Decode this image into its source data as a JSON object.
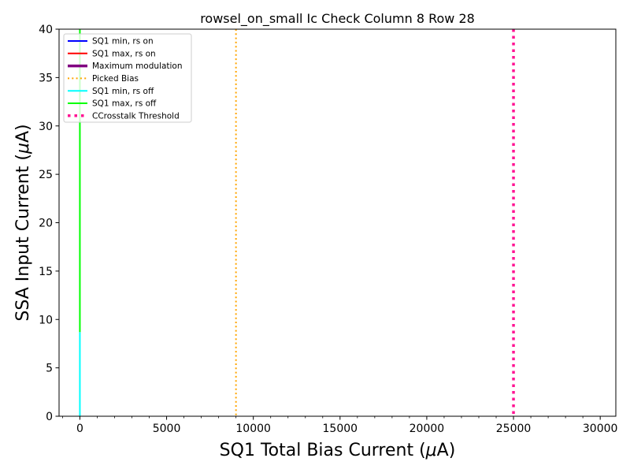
{
  "chart_data": {
    "type": "line",
    "title": "rowsel_on_small Ic Check Column 8 Row 28",
    "xlabel": "SQ1 Total Bias Current ($\\mu$A)",
    "ylabel": "SSA Input Current ($\\mu$A)",
    "xlabel_parts": [
      "SQ1 Total Bias Current (",
      "μ",
      "A)"
    ],
    "ylabel_parts": [
      "SSA Input Current (",
      "μ",
      "A)"
    ],
    "xlim": [
      -1200,
      30900
    ],
    "ylim": [
      0,
      40
    ],
    "x_ticks": [
      0,
      5000,
      10000,
      15000,
      20000,
      25000,
      30000
    ],
    "x_tick_labels": [
      "0",
      "5000",
      "10000",
      "15000",
      "20000",
      "25000",
      "30000"
    ],
    "y_ticks": [
      0,
      5,
      10,
      15,
      20,
      25,
      30,
      35,
      40
    ],
    "y_tick_labels": [
      "0",
      "5",
      "10",
      "15",
      "20",
      "25",
      "30",
      "35",
      "40"
    ],
    "x_minor_step": 1000,
    "grid": false,
    "legend_position": "top-left",
    "series": [
      {
        "name": "SQ1 min, rs on",
        "color": "#0000ff",
        "style": "solid",
        "width": 2,
        "x": [],
        "y": []
      },
      {
        "name": "SQ1 max, rs on",
        "color": "#ff0000",
        "style": "solid",
        "width": 2,
        "x": [],
        "y": []
      },
      {
        "name": "Maximum modulation",
        "color": "#800080",
        "style": "solid",
        "width": 3.5,
        "x": [],
        "y": []
      },
      {
        "name": "Picked Bias",
        "color": "#ffa500",
        "style": "dotted",
        "width": 2,
        "vline": 9000
      },
      {
        "name": "SQ1 min, rs off",
        "color": "#00ffff",
        "style": "solid",
        "width": 2,
        "x": [
          0,
          0
        ],
        "y": [
          0,
          8.7
        ]
      },
      {
        "name": "SQ1 max, rs off",
        "color": "#00ff00",
        "style": "solid",
        "width": 2,
        "x": [
          0,
          0,
          0,
          0,
          0
        ],
        "y": [
          8.7,
          15.8,
          16.2,
          33.0,
          40
        ]
      },
      {
        "name": "CCrosstalk Threshold",
        "color": "#ff1493",
        "style": "dotted",
        "width": 3.5,
        "vline": 25000
      }
    ]
  }
}
